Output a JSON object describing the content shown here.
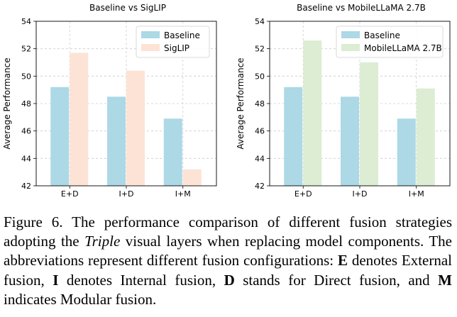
{
  "chart_data": [
    {
      "type": "bar",
      "title": "Baseline vs SigLIP",
      "ylabel": "Average Performance",
      "xlabel": "",
      "categories": [
        "E+D",
        "I+D",
        "I+M"
      ],
      "ylim": [
        42,
        54
      ],
      "yticks": [
        "42",
        "44",
        "46",
        "48",
        "50",
        "52",
        "54"
      ],
      "grid": true,
      "legend": "top-right",
      "series": [
        {
          "name": "Baseline",
          "values": [
            49.2,
            48.5,
            46.9
          ],
          "color": "#add8e6"
        },
        {
          "name": "SigLIP",
          "values": [
            51.7,
            50.4,
            43.2
          ],
          "color": "#fde3d6"
        }
      ]
    },
    {
      "type": "bar",
      "title": "Baseline vs MobileLLaMA 2.7B",
      "ylabel": "Average Performance",
      "xlabel": "",
      "categories": [
        "E+D",
        "I+D",
        "I+M"
      ],
      "ylim": [
        42,
        54
      ],
      "yticks": [
        "42",
        "44",
        "46",
        "48",
        "50",
        "52",
        "54"
      ],
      "grid": true,
      "legend": "top-right",
      "series": [
        {
          "name": "Baseline",
          "values": [
            49.2,
            48.5,
            46.9
          ],
          "color": "#add8e6"
        },
        {
          "name": "MobileLLaMA 2.7B",
          "values": [
            52.6,
            51.0,
            49.1
          ],
          "color": "#dcedd4"
        }
      ]
    }
  ],
  "caption": {
    "figure_label": "Figure 6.",
    "text_1": " The performance comparison of different fusion strategies adopting the ",
    "triple": "Triple",
    "text_2": " visual layers when replacing model components.  The abbreviations represent different fusion configurations: ",
    "e": "E",
    "text_3": " denotes External fusion, ",
    "i": "I",
    "text_4": " denotes Internal fusion, ",
    "d": "D",
    "text_5": " stands for Direct fusion, and ",
    "m": "M",
    "text_6": " indicates Modular fusion."
  }
}
